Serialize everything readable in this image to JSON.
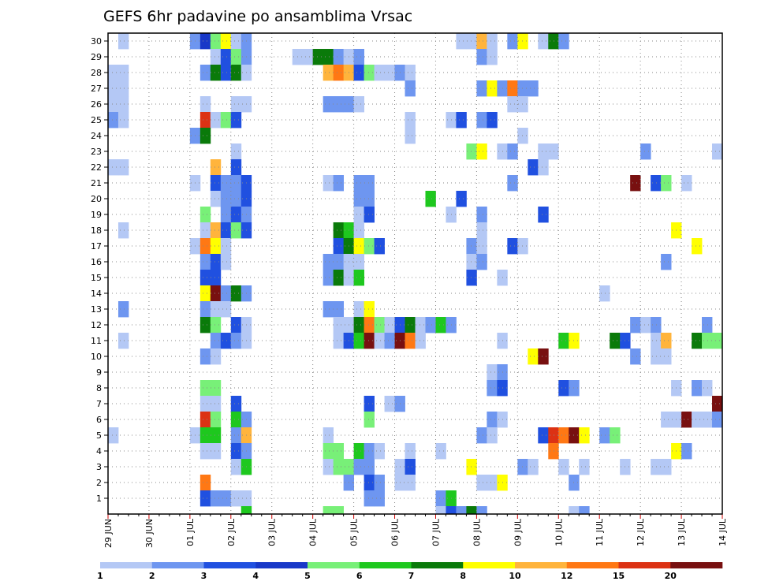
{
  "chart_data": {
    "type": "heatmap",
    "title": "GEFS 6hr padavine po ansamblima Vrsac",
    "y_members": [
      1,
      2,
      3,
      4,
      5,
      6,
      7,
      8,
      9,
      10,
      11,
      12,
      13,
      14,
      15,
      16,
      17,
      18,
      19,
      20,
      21,
      22,
      23,
      24,
      25,
      26,
      27,
      28,
      29,
      30
    ],
    "y_ticks": [
      "1",
      "2",
      "3",
      "4",
      "5",
      "6",
      "7",
      "8",
      "9",
      "10",
      "11",
      "12",
      "13",
      "14",
      "15",
      "16",
      "17",
      "18",
      "19",
      "20",
      "21",
      "22",
      "23",
      "24",
      "25",
      "26",
      "27",
      "28",
      "29",
      "30"
    ],
    "x_ticks": [
      "29 JUN",
      "30 JUN",
      "01 JUL",
      "02 JUL",
      "03 JUL",
      "04 JUL",
      "05 JUL",
      "06 JUL",
      "07 JUL",
      "08 JUL",
      "09 JUL",
      "10 JUL",
      "11 JUL",
      "12 JUL",
      "13 JUL",
      "14 JUL"
    ],
    "x_steps_per_day": 4,
    "x_steps_total": 60,
    "colorbar": {
      "labels": [
        "1",
        "2",
        "3",
        "4",
        "5",
        "6",
        "7",
        "8",
        "10",
        "12",
        "15",
        "20"
      ],
      "colors": [
        "#b4c8f5",
        "#6e96f0",
        "#2050e0",
        "#1838c8",
        "#78f078",
        "#1ec81e",
        "#0a7a0a",
        "#ffff00",
        "#ffb43c",
        "#ff7814",
        "#dc3214",
        "#781010"
      ]
    },
    "cells": [
      [
        30,
        2,
        0
      ],
      [
        30,
        9,
        1
      ],
      [
        30,
        10,
        3
      ],
      [
        30,
        11,
        4
      ],
      [
        30,
        12,
        7
      ],
      [
        30,
        13,
        0
      ],
      [
        30,
        14,
        1
      ],
      [
        30,
        35,
        0
      ],
      [
        30,
        36,
        0
      ],
      [
        30,
        37,
        8
      ],
      [
        30,
        38,
        0
      ],
      [
        30,
        40,
        1
      ],
      [
        30,
        41,
        7
      ],
      [
        30,
        43,
        0
      ],
      [
        30,
        44,
        6
      ],
      [
        30,
        45,
        1
      ],
      [
        29,
        11,
        0
      ],
      [
        29,
        12,
        2
      ],
      [
        29,
        13,
        4
      ],
      [
        29,
        14,
        1
      ],
      [
        29,
        19,
        0
      ],
      [
        29,
        20,
        0
      ],
      [
        29,
        21,
        6
      ],
      [
        29,
        22,
        6
      ],
      [
        29,
        23,
        1
      ],
      [
        29,
        24,
        0
      ],
      [
        29,
        25,
        1
      ],
      [
        29,
        37,
        1
      ],
      [
        29,
        38,
        0
      ],
      [
        28,
        1,
        0
      ],
      [
        28,
        2,
        0
      ],
      [
        28,
        10,
        1
      ],
      [
        28,
        11,
        6
      ],
      [
        28,
        12,
        2
      ],
      [
        28,
        13,
        6
      ],
      [
        28,
        14,
        0
      ],
      [
        28,
        22,
        8
      ],
      [
        28,
        23,
        9
      ],
      [
        28,
        24,
        8
      ],
      [
        28,
        25,
        2
      ],
      [
        28,
        26,
        4
      ],
      [
        28,
        27,
        0
      ],
      [
        28,
        28,
        0
      ],
      [
        28,
        29,
        1
      ],
      [
        28,
        30,
        0
      ],
      [
        27,
        1,
        0
      ],
      [
        27,
        2,
        0
      ],
      [
        27,
        30,
        1
      ],
      [
        27,
        37,
        1
      ],
      [
        27,
        38,
        7
      ],
      [
        27,
        39,
        1
      ],
      [
        27,
        40,
        9
      ],
      [
        27,
        41,
        1
      ],
      [
        27,
        42,
        1
      ],
      [
        26,
        1,
        0
      ],
      [
        26,
        2,
        0
      ],
      [
        26,
        10,
        0
      ],
      [
        26,
        13,
        0
      ],
      [
        26,
        14,
        0
      ],
      [
        26,
        22,
        1
      ],
      [
        26,
        23,
        1
      ],
      [
        26,
        24,
        1
      ],
      [
        26,
        25,
        0
      ],
      [
        26,
        40,
        0
      ],
      [
        26,
        41,
        0
      ],
      [
        25,
        1,
        1
      ],
      [
        25,
        2,
        0
      ],
      [
        25,
        10,
        10
      ],
      [
        25,
        11,
        0
      ],
      [
        25,
        12,
        4
      ],
      [
        25,
        13,
        2
      ],
      [
        25,
        30,
        0
      ],
      [
        25,
        34,
        0
      ],
      [
        25,
        35,
        2
      ],
      [
        25,
        37,
        1
      ],
      [
        25,
        38,
        2
      ],
      [
        24,
        9,
        1
      ],
      [
        24,
        10,
        6
      ],
      [
        24,
        30,
        0
      ],
      [
        24,
        41,
        0
      ],
      [
        23,
        13,
        0
      ],
      [
        23,
        36,
        4
      ],
      [
        23,
        37,
        7
      ],
      [
        23,
        39,
        0
      ],
      [
        23,
        40,
        1
      ],
      [
        23,
        43,
        0
      ],
      [
        23,
        44,
        0
      ],
      [
        23,
        53,
        1
      ],
      [
        23,
        60,
        0
      ],
      [
        22,
        1,
        0
      ],
      [
        22,
        2,
        0
      ],
      [
        22,
        11,
        8
      ],
      [
        22,
        13,
        2
      ],
      [
        22,
        42,
        2
      ],
      [
        22,
        43,
        0
      ],
      [
        21,
        9,
        0
      ],
      [
        21,
        11,
        2
      ],
      [
        21,
        12,
        1
      ],
      [
        21,
        13,
        1
      ],
      [
        21,
        14,
        2
      ],
      [
        21,
        22,
        0
      ],
      [
        21,
        23,
        1
      ],
      [
        21,
        25,
        1
      ],
      [
        21,
        26,
        1
      ],
      [
        21,
        40,
        1
      ],
      [
        21,
        52,
        11
      ],
      [
        21,
        54,
        2
      ],
      [
        21,
        55,
        4
      ],
      [
        21,
        57,
        0
      ],
      [
        20,
        11,
        0
      ],
      [
        20,
        12,
        1
      ],
      [
        20,
        13,
        1
      ],
      [
        20,
        14,
        2
      ],
      [
        20,
        25,
        1
      ],
      [
        20,
        26,
        1
      ],
      [
        20,
        32,
        5
      ],
      [
        20,
        35,
        2
      ],
      [
        19,
        10,
        4
      ],
      [
        19,
        12,
        1
      ],
      [
        19,
        13,
        2
      ],
      [
        19,
        14,
        1
      ],
      [
        19,
        25,
        0
      ],
      [
        19,
        26,
        2
      ],
      [
        19,
        34,
        0
      ],
      [
        19,
        37,
        1
      ],
      [
        19,
        43,
        2
      ],
      [
        18,
        2,
        0
      ],
      [
        18,
        10,
        0
      ],
      [
        18,
        11,
        8
      ],
      [
        18,
        12,
        2
      ],
      [
        18,
        13,
        4
      ],
      [
        18,
        14,
        2
      ],
      [
        18,
        23,
        6
      ],
      [
        18,
        24,
        5
      ],
      [
        18,
        25,
        0
      ],
      [
        18,
        37,
        0
      ],
      [
        18,
        56,
        7
      ],
      [
        17,
        9,
        0
      ],
      [
        17,
        10,
        9
      ],
      [
        17,
        11,
        7
      ],
      [
        17,
        12,
        0
      ],
      [
        17,
        23,
        2
      ],
      [
        17,
        24,
        6
      ],
      [
        17,
        25,
        7
      ],
      [
        17,
        26,
        4
      ],
      [
        17,
        27,
        2
      ],
      [
        17,
        36,
        1
      ],
      [
        17,
        37,
        0
      ],
      [
        17,
        40,
        2
      ],
      [
        17,
        41,
        0
      ],
      [
        17,
        58,
        7
      ],
      [
        16,
        10,
        1
      ],
      [
        16,
        11,
        2
      ],
      [
        16,
        12,
        0
      ],
      [
        16,
        22,
        1
      ],
      [
        16,
        23,
        1
      ],
      [
        16,
        24,
        0
      ],
      [
        16,
        25,
        0
      ],
      [
        16,
        36,
        0
      ],
      [
        16,
        37,
        1
      ],
      [
        16,
        55,
        1
      ],
      [
        15,
        10,
        2
      ],
      [
        15,
        11,
        2
      ],
      [
        15,
        22,
        1
      ],
      [
        15,
        23,
        6
      ],
      [
        15,
        24,
        0
      ],
      [
        15,
        25,
        5
      ],
      [
        15,
        36,
        2
      ],
      [
        15,
        39,
        0
      ],
      [
        14,
        10,
        7
      ],
      [
        14,
        11,
        11
      ],
      [
        14,
        12,
        1
      ],
      [
        14,
        13,
        6
      ],
      [
        14,
        14,
        1
      ],
      [
        14,
        49,
        0
      ],
      [
        13,
        2,
        1
      ],
      [
        13,
        10,
        1
      ],
      [
        13,
        11,
        0
      ],
      [
        13,
        12,
        0
      ],
      [
        13,
        22,
        1
      ],
      [
        13,
        23,
        1
      ],
      [
        13,
        25,
        0
      ],
      [
        13,
        26,
        7
      ],
      [
        12,
        10,
        6
      ],
      [
        12,
        11,
        4
      ],
      [
        12,
        13,
        2
      ],
      [
        12,
        14,
        0
      ],
      [
        12,
        23,
        0
      ],
      [
        12,
        24,
        0
      ],
      [
        12,
        25,
        6
      ],
      [
        12,
        26,
        9
      ],
      [
        12,
        27,
        4
      ],
      [
        12,
        28,
        0
      ],
      [
        12,
        29,
        2
      ],
      [
        12,
        30,
        6
      ],
      [
        12,
        31,
        0
      ],
      [
        12,
        32,
        1
      ],
      [
        12,
        33,
        5
      ],
      [
        12,
        34,
        1
      ],
      [
        12,
        52,
        1
      ],
      [
        12,
        53,
        0
      ],
      [
        12,
        54,
        1
      ],
      [
        12,
        59,
        1
      ],
      [
        11,
        2,
        0
      ],
      [
        11,
        11,
        1
      ],
      [
        11,
        12,
        2
      ],
      [
        11,
        13,
        1
      ],
      [
        11,
        14,
        0
      ],
      [
        11,
        23,
        0
      ],
      [
        11,
        24,
        2
      ],
      [
        11,
        25,
        5
      ],
      [
        11,
        26,
        11
      ],
      [
        11,
        27,
        0
      ],
      [
        11,
        28,
        1
      ],
      [
        11,
        29,
        11
      ],
      [
        11,
        30,
        9
      ],
      [
        11,
        31,
        0
      ],
      [
        11,
        39,
        0
      ],
      [
        11,
        45,
        5
      ],
      [
        11,
        46,
        7
      ],
      [
        11,
        50,
        6
      ],
      [
        11,
        51,
        2
      ],
      [
        11,
        54,
        0
      ],
      [
        11,
        55,
        8
      ],
      [
        11,
        58,
        6
      ],
      [
        11,
        59,
        4
      ],
      [
        11,
        60,
        4
      ],
      [
        10,
        10,
        1
      ],
      [
        10,
        11,
        0
      ],
      [
        10,
        42,
        7
      ],
      [
        10,
        43,
        11
      ],
      [
        10,
        52,
        1
      ],
      [
        10,
        54,
        0
      ],
      [
        10,
        55,
        0
      ],
      [
        9,
        38,
        0
      ],
      [
        9,
        39,
        1
      ],
      [
        8,
        10,
        4
      ],
      [
        8,
        11,
        4
      ],
      [
        8,
        38,
        1
      ],
      [
        8,
        39,
        2
      ],
      [
        8,
        45,
        2
      ],
      [
        8,
        46,
        1
      ],
      [
        8,
        56,
        0
      ],
      [
        8,
        58,
        1
      ],
      [
        8,
        59,
        0
      ],
      [
        7,
        10,
        0
      ],
      [
        7,
        11,
        0
      ],
      [
        7,
        13,
        2
      ],
      [
        7,
        26,
        2
      ],
      [
        7,
        28,
        0
      ],
      [
        7,
        29,
        1
      ],
      [
        7,
        60,
        11
      ],
      [
        6,
        10,
        10
      ],
      [
        6,
        11,
        4
      ],
      [
        6,
        13,
        5
      ],
      [
        6,
        14,
        1
      ],
      [
        6,
        26,
        4
      ],
      [
        6,
        38,
        1
      ],
      [
        6,
        39,
        0
      ],
      [
        6,
        55,
        0
      ],
      [
        6,
        56,
        0
      ],
      [
        6,
        57,
        11
      ],
      [
        6,
        58,
        0
      ],
      [
        6,
        59,
        0
      ],
      [
        6,
        60,
        1
      ],
      [
        5,
        1,
        0
      ],
      [
        5,
        9,
        0
      ],
      [
        5,
        10,
        5
      ],
      [
        5,
        11,
        5
      ],
      [
        5,
        13,
        1
      ],
      [
        5,
        14,
        8
      ],
      [
        5,
        22,
        0
      ],
      [
        5,
        37,
        1
      ],
      [
        5,
        38,
        0
      ],
      [
        5,
        43,
        2
      ],
      [
        5,
        44,
        10
      ],
      [
        5,
        45,
        9
      ],
      [
        5,
        46,
        11
      ],
      [
        5,
        47,
        7
      ],
      [
        5,
        49,
        1
      ],
      [
        5,
        50,
        4
      ],
      [
        4,
        10,
        0
      ],
      [
        4,
        11,
        0
      ],
      [
        4,
        13,
        2
      ],
      [
        4,
        14,
        1
      ],
      [
        4,
        22,
        4
      ],
      [
        4,
        23,
        4
      ],
      [
        4,
        25,
        5
      ],
      [
        4,
        26,
        1
      ],
      [
        4,
        27,
        0
      ],
      [
        4,
        30,
        0
      ],
      [
        4,
        33,
        0
      ],
      [
        4,
        44,
        9
      ],
      [
        4,
        56,
        7
      ],
      [
        4,
        57,
        1
      ],
      [
        3,
        13,
        0
      ],
      [
        3,
        14,
        5
      ],
      [
        3,
        22,
        0
      ],
      [
        3,
        23,
        4
      ],
      [
        3,
        24,
        4
      ],
      [
        3,
        25,
        1
      ],
      [
        3,
        26,
        1
      ],
      [
        3,
        29,
        0
      ],
      [
        3,
        30,
        2
      ],
      [
        3,
        36,
        7
      ],
      [
        3,
        41,
        1
      ],
      [
        3,
        42,
        0
      ],
      [
        3,
        45,
        0
      ],
      [
        3,
        47,
        0
      ],
      [
        3,
        51,
        0
      ],
      [
        3,
        54,
        0
      ],
      [
        3,
        55,
        0
      ],
      [
        2,
        10,
        9
      ],
      [
        2,
        24,
        1
      ],
      [
        2,
        26,
        2
      ],
      [
        2,
        27,
        1
      ],
      [
        2,
        29,
        0
      ],
      [
        2,
        30,
        0
      ],
      [
        2,
        37,
        0
      ],
      [
        2,
        38,
        0
      ],
      [
        2,
        39,
        7
      ],
      [
        2,
        46,
        1
      ],
      [
        1,
        10,
        2
      ],
      [
        1,
        11,
        1
      ],
      [
        1,
        12,
        1
      ],
      [
        1,
        13,
        0
      ],
      [
        1,
        14,
        0
      ],
      [
        1,
        26,
        1
      ],
      [
        1,
        27,
        1
      ],
      [
        1,
        33,
        1
      ],
      [
        1,
        34,
        5
      ],
      [
        0,
        14,
        5
      ],
      [
        0,
        22,
        4
      ],
      [
        0,
        23,
        4
      ],
      [
        0,
        33,
        0
      ],
      [
        0,
        34,
        2
      ],
      [
        0,
        35,
        1
      ],
      [
        0,
        36,
        6
      ],
      [
        0,
        37,
        1
      ],
      [
        0,
        46,
        0
      ],
      [
        0,
        47,
        1
      ]
    ]
  }
}
